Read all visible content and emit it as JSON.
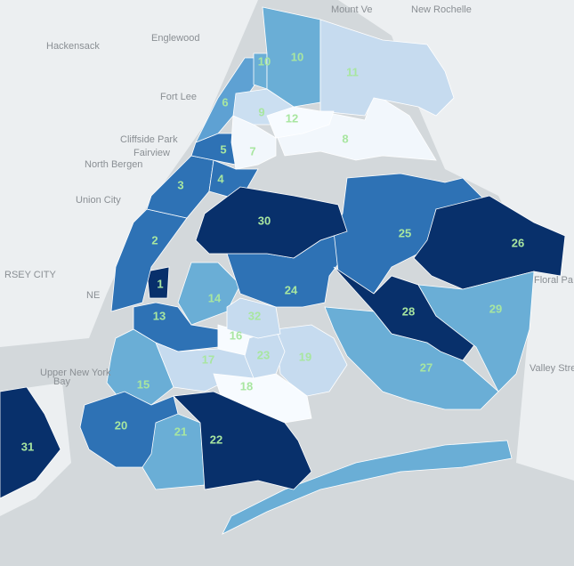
{
  "places": [
    {
      "label": "Mount Ve"
    },
    {
      "label": "New Rochelle"
    },
    {
      "label": "Hackensack"
    },
    {
      "label": "Englewood"
    },
    {
      "label": "Fort Lee"
    },
    {
      "label": "Cliffside Park"
    },
    {
      "label": "Fairview"
    },
    {
      "label": "North Bergen"
    },
    {
      "label": "Union City"
    },
    {
      "label": "RSEY CITY"
    },
    {
      "label": "NE"
    },
    {
      "label": "Upper New York"
    },
    {
      "label": "Bay"
    },
    {
      "label": "Floral Pa"
    },
    {
      "label": "Valley Stre"
    }
  ],
  "districts": [
    {
      "label": "1",
      "color": "#08306b"
    },
    {
      "label": "2",
      "color": "#2e72b5"
    },
    {
      "label": "3",
      "color": "#2e72b5"
    },
    {
      "label": "4",
      "color": "#2e72b5"
    },
    {
      "label": "5",
      "color": "#2e72b5"
    },
    {
      "label": "6",
      "color": "#5ea1d3"
    },
    {
      "label": "7",
      "color": "#f2f7fc"
    },
    {
      "label": "8",
      "color": "#f2f7fc"
    },
    {
      "label": "9",
      "color": "#cbdff1"
    },
    {
      "label": "10",
      "color": "#6aaed6"
    },
    {
      "label": "10",
      "color": "#6aaed6"
    },
    {
      "label": "11",
      "color": "#c6dbef"
    },
    {
      "label": "12",
      "color": "#f7fbff"
    },
    {
      "label": "13",
      "color": "#2e72b5"
    },
    {
      "label": "14",
      "color": "#6aaed6"
    },
    {
      "label": "15",
      "color": "#6aaed6"
    },
    {
      "label": "16",
      "color": "#f7fbff"
    },
    {
      "label": "17",
      "color": "#c6dbef"
    },
    {
      "label": "18",
      "color": "#f7fbff"
    },
    {
      "label": "19",
      "color": "#c6dbef"
    },
    {
      "label": "20",
      "color": "#2e72b5"
    },
    {
      "label": "21",
      "color": "#6aaed6"
    },
    {
      "label": "22",
      "color": "#08306b"
    },
    {
      "label": "23",
      "color": "#c6dbef"
    },
    {
      "label": "24",
      "color": "#2e72b5"
    },
    {
      "label": "25",
      "color": "#2e72b5"
    },
    {
      "label": "26",
      "color": "#08306b"
    },
    {
      "label": "27",
      "color": "#6aaed6"
    },
    {
      "label": "28",
      "color": "#08306b"
    },
    {
      "label": "29",
      "color": "#6aaed6"
    },
    {
      "label": "30",
      "color": "#08306b"
    },
    {
      "label": "31",
      "color": "#08306b"
    },
    {
      "label": "32",
      "color": "#c6dbef"
    }
  ]
}
